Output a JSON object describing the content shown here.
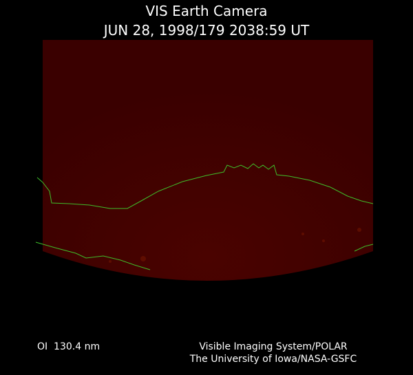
{
  "header": {
    "title": "VIS Earth Camera",
    "timestamp": "JUN 28, 1998/179 2038:59 UT"
  },
  "footer": {
    "filter": "OI  130.4 nm",
    "credits": [
      "Visible Imaging System/POLAR",
      "The University of Iowa/NASA-GSFC"
    ]
  }
}
